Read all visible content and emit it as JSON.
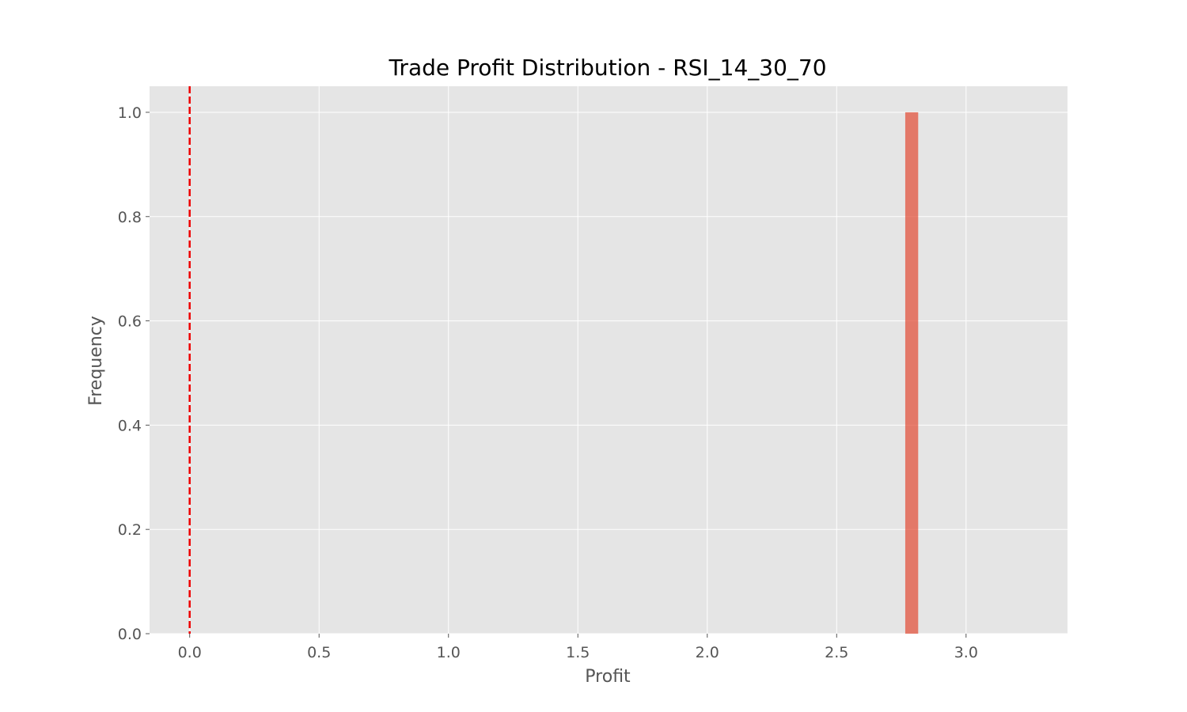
{
  "chart_data": {
    "type": "bar",
    "title": "Trade Profit Distribution - RSI_14_30_70",
    "xlabel": "Profit",
    "ylabel": "Frequency",
    "xlim": [
      -0.155,
      3.392
    ],
    "ylim": [
      0,
      1.05
    ],
    "x_ticks": [
      0.0,
      0.5,
      1.0,
      1.5,
      2.0,
      2.5,
      3.0
    ],
    "x_tick_labels": [
      "0.0",
      "0.5",
      "1.0",
      "1.5",
      "2.0",
      "2.5",
      "3.0"
    ],
    "y_ticks": [
      0.0,
      0.2,
      0.4,
      0.6,
      0.8,
      1.0
    ],
    "y_tick_labels": [
      "0.0",
      "0.2",
      "0.4",
      "0.6",
      "0.8",
      "1.0"
    ],
    "bins": [
      {
        "x_start": 2.765,
        "x_end": 2.815,
        "value": 1
      }
    ],
    "reference_line": {
      "x": 0,
      "style": "dashed",
      "color": "#ee0000"
    },
    "grid": true,
    "colors": {
      "background": "#e5e5e5",
      "bar": "#e24a33",
      "grid": "#ffffff",
      "reference_line": "#ee0000"
    }
  }
}
